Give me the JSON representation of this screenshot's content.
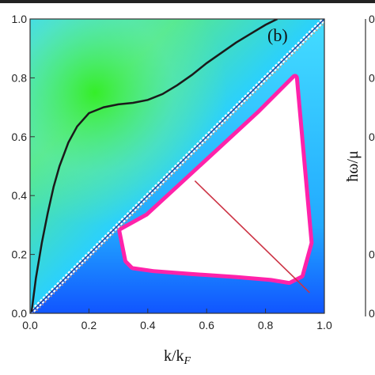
{
  "chart_data": {
    "type": "heatmap",
    "panel_label": "(b)",
    "xlabel": "k/k_F",
    "xlabel_main": "k/k",
    "xlabel_sub": "F",
    "ylabel": "",
    "xlim": [
      0.0,
      1.0
    ],
    "ylim": [
      0.0,
      1.0
    ],
    "xticks": [
      "0.0",
      "0.2",
      "0.4",
      "0.6",
      "0.8",
      "1.0"
    ],
    "yticks": [
      "0.0",
      "0.2",
      "0.4",
      "0.6",
      "0.8",
      "1.0"
    ],
    "dispersion_curve": {
      "x": [
        0.005,
        0.02,
        0.04,
        0.06,
        0.08,
        0.1,
        0.13,
        0.16,
        0.2,
        0.25,
        0.3,
        0.35,
        0.4,
        0.45,
        0.5,
        0.55,
        0.6,
        0.65,
        0.7,
        0.75,
        0.8,
        0.84
      ],
      "y": [
        0.005,
        0.12,
        0.24,
        0.34,
        0.43,
        0.5,
        0.58,
        0.635,
        0.68,
        0.7,
        0.71,
        0.715,
        0.725,
        0.745,
        0.775,
        0.81,
        0.85,
        0.885,
        0.92,
        0.95,
        0.98,
        1.0
      ]
    },
    "continuum_edge": {
      "x": [
        0.0,
        1.0
      ],
      "y": [
        0.0,
        1.0
      ]
    },
    "gap_region": {
      "x": [
        0.31,
        0.33,
        0.35,
        0.42,
        0.55,
        0.7,
        0.82,
        0.88,
        0.92,
        0.95,
        0.9,
        0.78,
        0.65,
        0.52,
        0.4,
        0.31
      ],
      "y": [
        0.28,
        0.18,
        0.16,
        0.15,
        0.14,
        0.13,
        0.12,
        0.11,
        0.13,
        0.24,
        0.8,
        0.68,
        0.56,
        0.44,
        0.33,
        0.28
      ]
    },
    "right_panel_label": "ħω/μ",
    "right_panel_ticks": [
      "0",
      "0",
      "0",
      "0",
      "0"
    ]
  }
}
